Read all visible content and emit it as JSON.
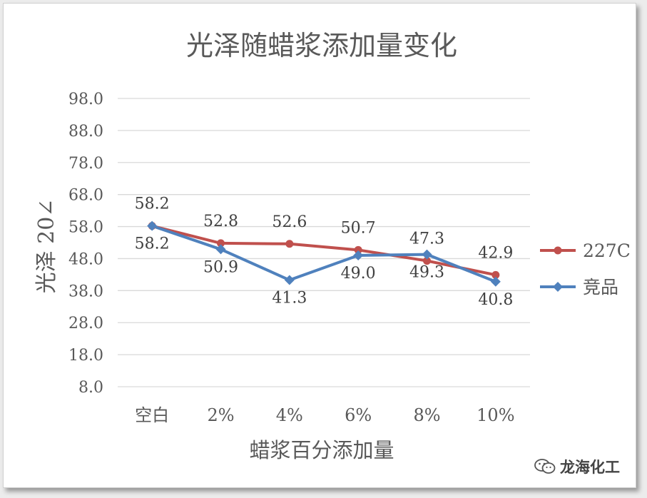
{
  "chart_data": {
    "type": "line",
    "title": "光泽随蜡浆添加量变化",
    "xlabel": "蜡浆百分添加量",
    "ylabel": "光泽 20∠",
    "categories": [
      "空白",
      "2%",
      "4%",
      "6%",
      "8%",
      "10%"
    ],
    "yticks": [
      "98.0",
      "88.0",
      "78.0",
      "68.0",
      "58.0",
      "48.0",
      "38.0",
      "28.0",
      "18.0",
      "8.0"
    ],
    "ylim": [
      8.0,
      98.0
    ],
    "grid": true,
    "legend_position": "right",
    "series": [
      {
        "name": "227C",
        "values": [
          58.2,
          52.8,
          52.6,
          50.7,
          47.3,
          42.9
        ],
        "labels": [
          "58.2",
          "52.8",
          "52.6",
          "50.7",
          "47.3",
          "42.9"
        ],
        "color": "#c0504d",
        "marker": "circle"
      },
      {
        "name": "竞品",
        "values": [
          58.2,
          50.9,
          41.3,
          49.0,
          49.3,
          40.8
        ],
        "labels": [
          "58.2",
          "50.9",
          "41.3",
          "49.0",
          "49.3",
          "40.8"
        ],
        "color": "#4f81bd",
        "marker": "diamond"
      }
    ]
  },
  "watermark": {
    "text": "龙海化工",
    "icon": "wechat-icon"
  }
}
